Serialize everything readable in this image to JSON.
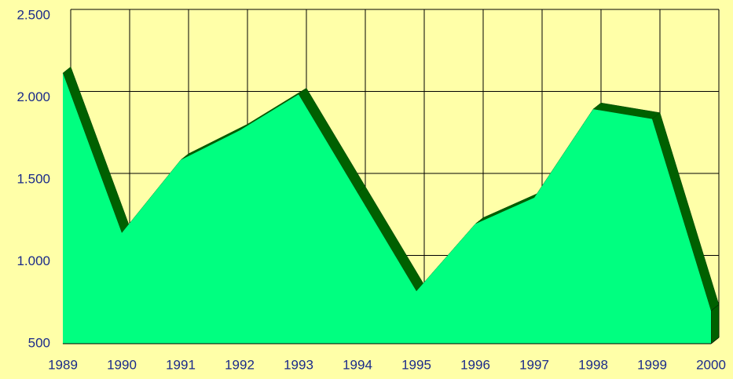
{
  "chart_data": {
    "type": "area3d",
    "categories": [
      "1989",
      "1990",
      "1991",
      "1992",
      "1993",
      "1994",
      "1995",
      "1996",
      "1997",
      "1998",
      "1999",
      "2000"
    ],
    "values": [
      2150,
      1175,
      1620,
      1800,
      2020,
      1420,
      820,
      1230,
      1390,
      1930,
      1870,
      700
    ],
    "color": "#00ff80",
    "ylim": [
      500,
      2500
    ],
    "yticks": [
      {
        "value": 500,
        "label": "500"
      },
      {
        "value": 1000,
        "label": "1.000"
      },
      {
        "value": 1500,
        "label": "1.500"
      },
      {
        "value": 2000,
        "label": "2.000"
      },
      {
        "value": 2500,
        "label": "2.500"
      }
    ],
    "grid": true
  }
}
